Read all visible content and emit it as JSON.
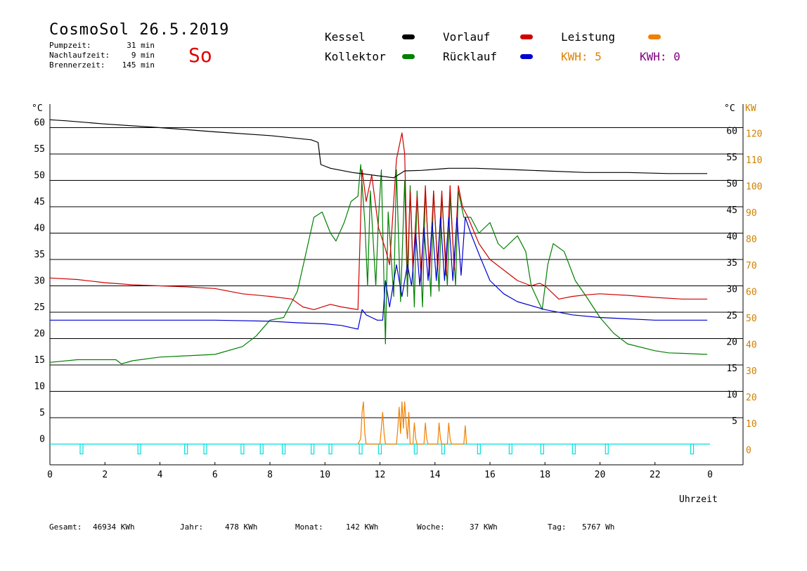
{
  "header": {
    "title": "CosmoSol 26.5.2019",
    "weekday": "So",
    "stats": [
      {
        "label": "Pumpzeit:",
        "value": "31 min"
      },
      {
        "label": "Nachlaufzeit:",
        "value": "9 min"
      },
      {
        "label": "Brennerzeit:",
        "value": "145 min"
      }
    ]
  },
  "legend": {
    "kessel": "Kessel",
    "kollektor": "Kollektor",
    "vorlauf": "Vorlauf",
    "ruecklauf": "Rücklauf",
    "leistung": "Leistung",
    "kwh1": "KWH: 5",
    "kwh2": "KWH: 0"
  },
  "colors": {
    "kessel": "#000000",
    "kollektor": "#008000",
    "vorlauf": "#d00000",
    "ruecklauf": "#0000d0",
    "leistung": "#f08000",
    "kwh2": "#800080",
    "pump": "#00e0e0"
  },
  "footer": {
    "gesamt_label": "Gesamt:",
    "gesamt_value": "46934 KWh",
    "jahr_label": "Jahr:",
    "jahr_value": "478 KWh",
    "monat_label": "Monat:",
    "monat_value": "142 KWh",
    "woche_label": "Woche:",
    "woche_value": "37 KWh",
    "tag_label": "Tag:",
    "tag_value": "5767 Wh"
  },
  "chart_data": {
    "type": "line",
    "xlabel": "Uhrzeit",
    "x_ticks": [
      "0",
      "2",
      "4",
      "6",
      "8",
      "10",
      "12",
      "14",
      "16",
      "18",
      "20",
      "22",
      "0"
    ],
    "xlim": [
      0,
      24
    ],
    "ylim": [
      -2,
      65
    ],
    "left_unit": "°C",
    "right_unit": "°C",
    "right2_unit": "KW",
    "left_ticks": [
      0,
      5,
      10,
      15,
      20,
      25,
      30,
      35,
      40,
      45,
      50,
      55,
      60
    ],
    "right_ticks": [
      5,
      10,
      15,
      20,
      25,
      30,
      35,
      40,
      45,
      50,
      55,
      60
    ],
    "kw_ticks": [
      0,
      10,
      20,
      30,
      40,
      50,
      60,
      70,
      80,
      90,
      100,
      110,
      120
    ],
    "series": [
      {
        "name": "Kessel",
        "x": [
          0,
          0.6,
          2,
          4,
          6,
          8,
          9.5,
          9.75,
          9.85,
          10.2,
          11,
          12.5,
          12.9,
          13.5,
          14.5,
          15.5,
          17,
          19.5,
          21,
          22.5,
          23.9
        ],
        "y": [
          61.5,
          61.3,
          60.7,
          60,
          59.2,
          58.5,
          57.7,
          57.2,
          53,
          52.3,
          51.5,
          50.5,
          51.8,
          51.9,
          52.3,
          52.3,
          52,
          51.5,
          51.5,
          51.3,
          51.3
        ]
      },
      {
        "name": "Kollektor",
        "x": [
          0,
          1,
          2.4,
          2.6,
          3,
          4,
          6,
          7,
          7.5,
          8,
          8.5,
          9,
          9.3,
          9.6,
          9.9,
          10.2,
          10.4,
          10.7,
          10.95,
          11.2,
          11.3,
          11.45,
          11.55,
          11.65,
          11.85,
          11.95,
          12.05,
          12.2,
          12.3,
          12.5,
          12.6,
          12.75,
          12.9,
          13.0,
          13.1,
          13.25,
          13.35,
          13.55,
          13.65,
          13.85,
          13.95,
          14.15,
          14.25,
          14.45,
          14.55,
          14.75,
          14.85,
          15.05,
          15.3,
          15.6,
          16,
          16.3,
          16.5,
          17,
          17.3,
          17.5,
          17.9,
          18.1,
          18.3,
          18.7,
          19.1,
          19.5,
          20,
          20.5,
          21,
          22,
          22.5,
          23,
          23.9
        ],
        "y": [
          15.5,
          16,
          16,
          15.2,
          15.8,
          16.5,
          17,
          18.5,
          20.5,
          23.5,
          24,
          29,
          36,
          43,
          44,
          40,
          38.5,
          42,
          46,
          47,
          53,
          42,
          30,
          48,
          30,
          43,
          52,
          19,
          44,
          28,
          52,
          27,
          50,
          28,
          49,
          26,
          48,
          26,
          48,
          28,
          48,
          29,
          47,
          30,
          47,
          30,
          48,
          43,
          43,
          40,
          42,
          38,
          37,
          39.5,
          36.5,
          30,
          25.5,
          34,
          38,
          36.5,
          31,
          28,
          24,
          21,
          19,
          17.7,
          17.3,
          17.2,
          17
        ]
      },
      {
        "name": "Vorlauf",
        "x": [
          0,
          1,
          2,
          3,
          4,
          5,
          6,
          7,
          8,
          8.8,
          9.2,
          9.6,
          10.2,
          10.6,
          11.2,
          11.35,
          11.5,
          11.7,
          11.95,
          12.2,
          12.35,
          12.6,
          12.8,
          12.9,
          13.0,
          13.1,
          13.2,
          13.35,
          13.5,
          13.65,
          13.8,
          13.95,
          14.1,
          14.25,
          14.4,
          14.55,
          14.7,
          14.85,
          15.0,
          15.2,
          15.6,
          16,
          16.5,
          17,
          17.5,
          17.8,
          18.0,
          18.5,
          19,
          19.5,
          20,
          21,
          22,
          23,
          23.9
        ],
        "y": [
          31.5,
          31.2,
          30.6,
          30.2,
          30,
          29.8,
          29.5,
          28.5,
          28,
          27.5,
          26,
          25.5,
          26.5,
          26,
          25.5,
          52,
          46,
          51,
          41,
          37,
          34,
          54,
          59,
          55,
          32,
          48,
          33,
          47,
          31,
          49,
          32,
          48,
          33,
          48,
          32,
          49,
          33,
          49,
          45,
          43,
          38,
          35,
          33,
          31,
          30,
          30.5,
          30,
          27.5,
          28,
          28.3,
          28.5,
          28.2,
          27.8,
          27.5,
          27.5
        ]
      },
      {
        "name": "Rücklauf",
        "x": [
          0,
          2,
          4,
          6,
          8,
          9,
          10,
          10.6,
          11.2,
          11.35,
          11.5,
          11.7,
          11.9,
          12.1,
          12.2,
          12.35,
          12.6,
          12.8,
          13.0,
          13.15,
          13.3,
          13.45,
          13.6,
          13.75,
          13.9,
          14.05,
          14.2,
          14.35,
          14.5,
          14.65,
          14.8,
          14.95,
          15.1,
          15.3,
          15.6,
          16,
          16.5,
          17,
          18,
          19,
          20,
          22,
          23.9
        ],
        "y": [
          23.5,
          23.5,
          23.5,
          23.5,
          23.3,
          23,
          22.8,
          22.5,
          21.8,
          25.5,
          24.5,
          24,
          23.5,
          23.5,
          31,
          26,
          34,
          28,
          34,
          30,
          40,
          30,
          41,
          31,
          42,
          31,
          43,
          31,
          43,
          31,
          43,
          32,
          43,
          40,
          36,
          31,
          28.5,
          27,
          25.5,
          24.5,
          24,
          23.5,
          23.5
        ]
      },
      {
        "name": "Leistung",
        "x": [
          11.2,
          11.3,
          11.35,
          11.4,
          11.45,
          11.5,
          12.0,
          12.1,
          12.15,
          12.2,
          12.6,
          12.65,
          12.7,
          12.75,
          12.8,
          12.85,
          12.9,
          12.95,
          13.0,
          13.05,
          13.1,
          13.2,
          13.25,
          13.3,
          13.35,
          13.6,
          13.65,
          13.7,
          13.75,
          14.1,
          14.15,
          14.2,
          14.25,
          14.45,
          14.5,
          14.55,
          14.6,
          15.05,
          15.1,
          15.15
        ],
        "y": [
          0,
          1,
          6,
          8,
          2,
          0,
          0,
          6,
          2,
          0,
          0,
          3,
          7,
          2,
          8,
          3,
          8,
          4,
          1,
          6,
          0,
          0,
          4,
          1,
          0,
          0,
          4,
          1,
          0,
          0,
          4,
          1,
          0,
          0,
          4,
          1,
          0,
          0,
          3.5,
          0
        ]
      }
    ],
    "pump_on_times": [
      1.15,
      3.25,
      4.95,
      5.65,
      7.0,
      7.7,
      8.5,
      9.55,
      10.2,
      11.3,
      12.0,
      13.3,
      14.3,
      15.6,
      16.75,
      17.9,
      19.05,
      20.25,
      23.35
    ]
  }
}
